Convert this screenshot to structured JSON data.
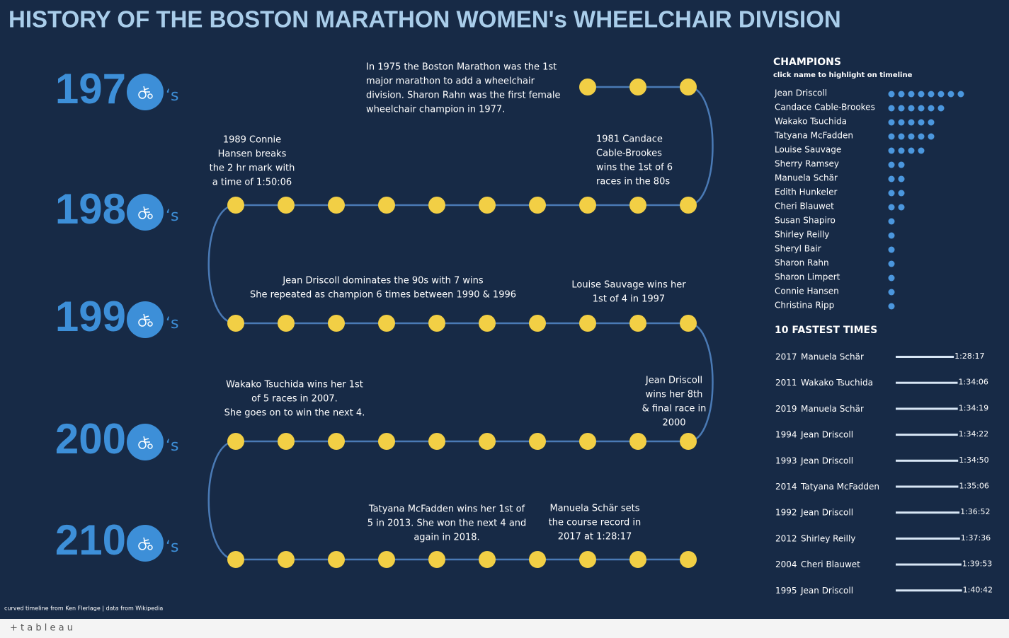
{
  "header": {
    "title": "HISTORY OF THE BOSTON MARATHON WOMEN's WHEELCHAIR DIVISION"
  },
  "decades": {
    "prefixes": [
      "197",
      "198",
      "199",
      "200",
      "210"
    ],
    "suffix": "‘s"
  },
  "annotations": [
    {
      "lines": [
        "In 1975 the Boston Marathon was the 1st",
        "major marathon to add a wheelchair",
        "division. Sharon Rahn was the first female",
        "wheelchair champion in 1977."
      ]
    },
    {
      "lines": [
        "1989 Connie",
        "Hansen breaks",
        "the 2 hr mark with",
        "a time of 1:50:06"
      ]
    },
    {
      "lines": [
        "1981 Candace",
        "Cable-Brookes",
        "wins the 1st of 6",
        "races in the 80s"
      ]
    },
    {
      "lines": [
        "Jean Driscoll dominates the 90s with 7 wins",
        "She repeated as champion 6 times between 1990 & 1996"
      ]
    },
    {
      "lines": [
        "Louise Sauvage wins her",
        "1st of 4 in 1997"
      ]
    },
    {
      "lines": [
        "Wakako Tsuchida wins her 1st",
        "of 5 races in 2007.",
        "She goes on to win the next 4."
      ]
    },
    {
      "lines": [
        "Jean Driscoll",
        "wins her 8th",
        "& final race in",
        "2000"
      ]
    },
    {
      "lines": [
        "Tatyana McFadden wins her 1st of",
        "5 in 2013. She won the next 4 and",
        "again in 2018."
      ]
    },
    {
      "lines": [
        "Manuela Schär sets",
        "the course record in",
        "2017 at 1:28:17"
      ]
    }
  ],
  "champions": {
    "title": "CHAMPIONS",
    "subtitle": "click name to highlight on timeline",
    "color": "#4b97de",
    "names": [
      "Jean Driscoll",
      "Candace Cable-Brookes",
      "Wakako Tsuchida",
      "Tatyana McFadden",
      "Louise Sauvage",
      "Sherry Ramsey",
      "Manuela Schär",
      "Edith Hunkeler",
      "Cheri Blauwet",
      "Susan Shapiro",
      "Shirley Reilly",
      "Sheryl Bair",
      "Sharon Rahn",
      "Sharon Limpert",
      "Connie Hansen",
      "Christina Ripp"
    ],
    "wins": [
      8,
      6,
      5,
      5,
      4,
      2,
      2,
      2,
      2,
      1,
      1,
      1,
      1,
      1,
      1,
      1
    ]
  },
  "fastest": {
    "title": "10 FASTEST TIMES",
    "rows": [
      {
        "year": "2017",
        "name": "Manuela Schär",
        "time": "1:28:17"
      },
      {
        "year": "2011",
        "name": "Wakako Tsuchida",
        "time": "1:34:06"
      },
      {
        "year": "2019",
        "name": "Manuela Schär",
        "time": "1:34:19"
      },
      {
        "year": "1994",
        "name": "Jean Driscoll",
        "time": "1:34:22"
      },
      {
        "year": "1993",
        "name": "Jean Driscoll",
        "time": "1:34:50"
      },
      {
        "year": "2014",
        "name": "Tatyana McFadden",
        "time": "1:35:06"
      },
      {
        "year": "1992",
        "name": "Jean Driscoll",
        "time": "1:36:52"
      },
      {
        "year": "2012",
        "name": "Shirley Reilly",
        "time": "1:37:36"
      },
      {
        "year": "2004",
        "name": "Cheri Blauwet",
        "time": "1:39:53"
      },
      {
        "year": "1995",
        "name": "Jean Driscoll",
        "time": "1:40:42"
      }
    ]
  },
  "footer": {
    "credit": "curved timeline from Ken Flerlage | data from Wikipedia",
    "brand": "+ t a b l e a u"
  }
}
